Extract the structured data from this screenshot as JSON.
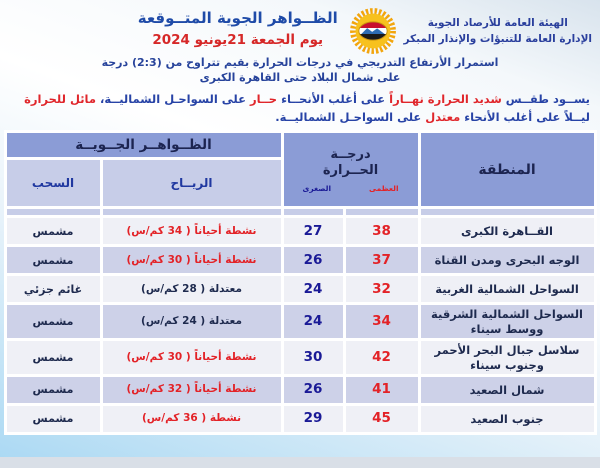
{
  "header": {
    "agency_line1": "الهيئة العامة للأرصاد الجوية",
    "agency_line2": "الإدارة العامة للتنبؤات والإنذار المبكر",
    "title": "الظــواهر الجوية المتــوقعة",
    "date": "يوم الجمعة  21يونيو 2024",
    "logo": "egypt-meteorological-authority-sun-emblem"
  },
  "summary": {
    "line1": "استمرار الأرتفاع التدريجي في درجات الحرارة بقيم تتراوح من (2:3) درجة",
    "line2": "على شمال البلاد حتى القاهرة الكبرى",
    "bulletin_segments": [
      {
        "text": "يســود طقــس ",
        "color": "blue"
      },
      {
        "text": "شديد الحرارة نهــاراً ",
        "color": "red"
      },
      {
        "text": "على أغلب الأنحــاء ",
        "color": "blue"
      },
      {
        "text": "حــار ",
        "color": "red"
      },
      {
        "text": "على السواحـل الشماليــة، ",
        "color": "blue"
      },
      {
        "text": "مائل للحرارة ",
        "color": "red"
      },
      {
        "text": "ليــلاً على أغلب الأنحاء ",
        "color": "blue"
      },
      {
        "text": "معتدل ",
        "color": "red"
      },
      {
        "text": "على السواحـل الشماليــة.",
        "color": "blue"
      }
    ]
  },
  "table": {
    "headers": {
      "region": "المنطقة",
      "temp_line1": "درجــة",
      "temp_line2": "الحــرارة",
      "temp_max": "العظمى",
      "temp_min": "الصغرى",
      "phenomena": "الظــواهــر الجــويــة",
      "wind": "الريــاح",
      "clouds": "السحب"
    },
    "rows": [
      {
        "region": "القــاهرة الكبرى",
        "max": "38",
        "min": "27",
        "wind": "نشطة أحياناً ( 34 كم/س)",
        "wind_color": "red",
        "clouds": "مشمس"
      },
      {
        "region": "الوجه البحرى ومدن القناة",
        "max": "37",
        "min": "26",
        "wind": "نشطة أحياناً ( 30 كم/س)",
        "wind_color": "red",
        "clouds": "مشمس"
      },
      {
        "region": "السواحل الشمالية الغربية",
        "max": "32",
        "min": "24",
        "wind": "معتدلة ( 28 كم/س)",
        "wind_color": "dark",
        "clouds": "غائم جزئي"
      },
      {
        "region": "السواحل الشمالية الشرقية ووسط سيناء",
        "max": "34",
        "min": "24",
        "wind": "معتدلة ( 24 كم/س)",
        "wind_color": "dark",
        "clouds": "مشمس"
      },
      {
        "region": "سلاسل جبال البحر الأحمر وجنوب سيناء",
        "max": "42",
        "min": "30",
        "wind": "نشطة أحياناً ( 30 كم/س)",
        "wind_color": "red",
        "clouds": "مشمس"
      },
      {
        "region": "شمال الصعيد",
        "max": "41",
        "min": "26",
        "wind": "نشطة أحياناً ( 32 كم/س)",
        "wind_color": "red",
        "clouds": "مشمس"
      },
      {
        "region": "جنوب الصعيد",
        "max": "45",
        "min": "29",
        "wind": "نشطة ( 36 كم/س)",
        "wind_color": "red",
        "clouds": "مشمس"
      }
    ]
  },
  "colors": {
    "accent_red": "#e32227",
    "number_blue": "#1a1a96",
    "header_fill": "#8b9cd6",
    "subheader_fill": "#c7cde8",
    "row_light": "#eff0f6",
    "row_shaded": "#cdd1e8",
    "heading_blue": "#1f4ba8",
    "date_red": "#d62828"
  }
}
